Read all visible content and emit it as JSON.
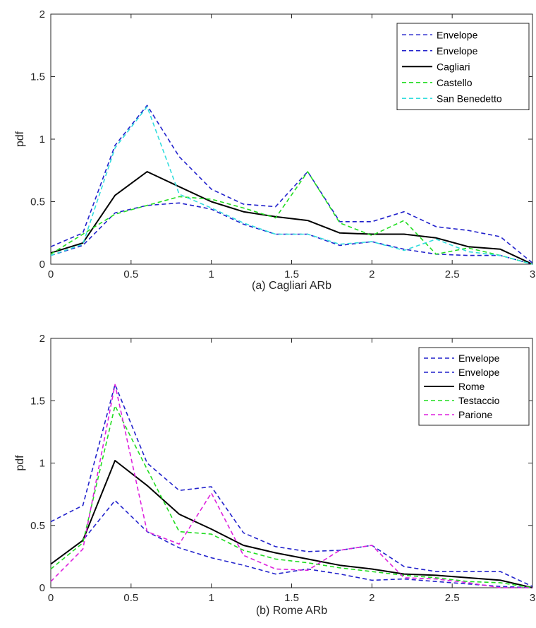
{
  "chart_data": [
    {
      "type": "line",
      "xlabel": "(a) Cagliari ARb",
      "ylabel": "pdf",
      "xlim": [
        0,
        3
      ],
      "ylim": [
        0,
        2
      ],
      "xticks": [
        "0",
        "0.5",
        "1",
        "1.5",
        "2",
        "2.5",
        "3"
      ],
      "yticks": [
        "0",
        "0.5",
        "1",
        "1.5",
        "2"
      ],
      "x": [
        0,
        0.2,
        0.4,
        0.6,
        0.8,
        1.0,
        1.2,
        1.4,
        1.6,
        1.8,
        2.0,
        2.2,
        2.4,
        2.6,
        2.8,
        3.0
      ],
      "legend_position": "top-right",
      "grid": false,
      "series": [
        {
          "name": "Envelope",
          "color": "#2222cc",
          "style": "dashed",
          "values": [
            0.14,
            0.25,
            0.95,
            1.27,
            0.86,
            0.6,
            0.48,
            0.46,
            0.74,
            0.34,
            0.34,
            0.42,
            0.3,
            0.27,
            0.22,
            0.01
          ]
        },
        {
          "name": "Envelope",
          "color": "#2222cc",
          "style": "dashed",
          "values": [
            0.07,
            0.15,
            0.41,
            0.47,
            0.49,
            0.44,
            0.32,
            0.24,
            0.24,
            0.15,
            0.18,
            0.12,
            0.08,
            0.07,
            0.07,
            0.0
          ]
        },
        {
          "name": "Cagliari",
          "color": "#000000",
          "style": "solid",
          "values": [
            0.09,
            0.17,
            0.55,
            0.74,
            0.62,
            0.5,
            0.42,
            0.38,
            0.35,
            0.25,
            0.24,
            0.24,
            0.21,
            0.14,
            0.12,
            0.0
          ]
        },
        {
          "name": "Castello",
          "color": "#22dd22",
          "style": "dashed",
          "values": [
            0.08,
            0.24,
            0.4,
            0.47,
            0.54,
            0.52,
            0.45,
            0.37,
            0.74,
            0.33,
            0.23,
            0.35,
            0.08,
            0.13,
            0.07,
            0.0
          ]
        },
        {
          "name": "San Benedetto",
          "color": "#33dddd",
          "style": "dashed",
          "values": [
            0.07,
            0.16,
            0.93,
            1.26,
            0.56,
            0.45,
            0.33,
            0.24,
            0.24,
            0.16,
            0.18,
            0.11,
            0.2,
            0.1,
            0.07,
            0.0
          ]
        }
      ]
    },
    {
      "type": "line",
      "xlabel": "(b) Rome ARb",
      "ylabel": "pdf",
      "xlim": [
        0,
        3
      ],
      "ylim": [
        0,
        2
      ],
      "xticks": [
        "0",
        "0.5",
        "1",
        "1.5",
        "2",
        "2.5",
        "3"
      ],
      "yticks": [
        "0",
        "0.5",
        "1",
        "1.5",
        "2"
      ],
      "x": [
        0,
        0.2,
        0.4,
        0.6,
        0.8,
        1.0,
        1.2,
        1.4,
        1.6,
        1.8,
        2.0,
        2.2,
        2.4,
        2.6,
        2.8,
        3.0
      ],
      "legend_position": "top-right",
      "grid": false,
      "series": [
        {
          "name": "Envelope",
          "color": "#2222cc",
          "style": "dashed",
          "values": [
            0.53,
            0.66,
            1.63,
            1.0,
            0.78,
            0.81,
            0.44,
            0.33,
            0.29,
            0.3,
            0.34,
            0.17,
            0.13,
            0.13,
            0.13,
            0.01
          ]
        },
        {
          "name": "Envelope",
          "color": "#2222cc",
          "style": "dashed",
          "values": [
            0.19,
            0.38,
            0.7,
            0.45,
            0.32,
            0.24,
            0.18,
            0.11,
            0.15,
            0.11,
            0.06,
            0.07,
            0.05,
            0.03,
            0.01,
            0.0
          ]
        },
        {
          "name": "Rome",
          "color": "#000000",
          "style": "solid",
          "values": [
            0.19,
            0.38,
            1.02,
            0.82,
            0.59,
            0.47,
            0.34,
            0.28,
            0.23,
            0.18,
            0.15,
            0.11,
            0.1,
            0.08,
            0.06,
            0.0
          ]
        },
        {
          "name": "Testaccio",
          "color": "#22dd22",
          "style": "dashed",
          "values": [
            0.15,
            0.36,
            1.46,
            0.95,
            0.45,
            0.43,
            0.3,
            0.23,
            0.2,
            0.16,
            0.13,
            0.1,
            0.08,
            0.05,
            0.04,
            0.0
          ]
        },
        {
          "name": "Parione",
          "color": "#dd22dd",
          "style": "dashed",
          "values": [
            0.05,
            0.31,
            1.63,
            0.45,
            0.35,
            0.76,
            0.26,
            0.15,
            0.14,
            0.3,
            0.34,
            0.08,
            0.07,
            0.04,
            0.0,
            0.0
          ]
        }
      ]
    }
  ]
}
